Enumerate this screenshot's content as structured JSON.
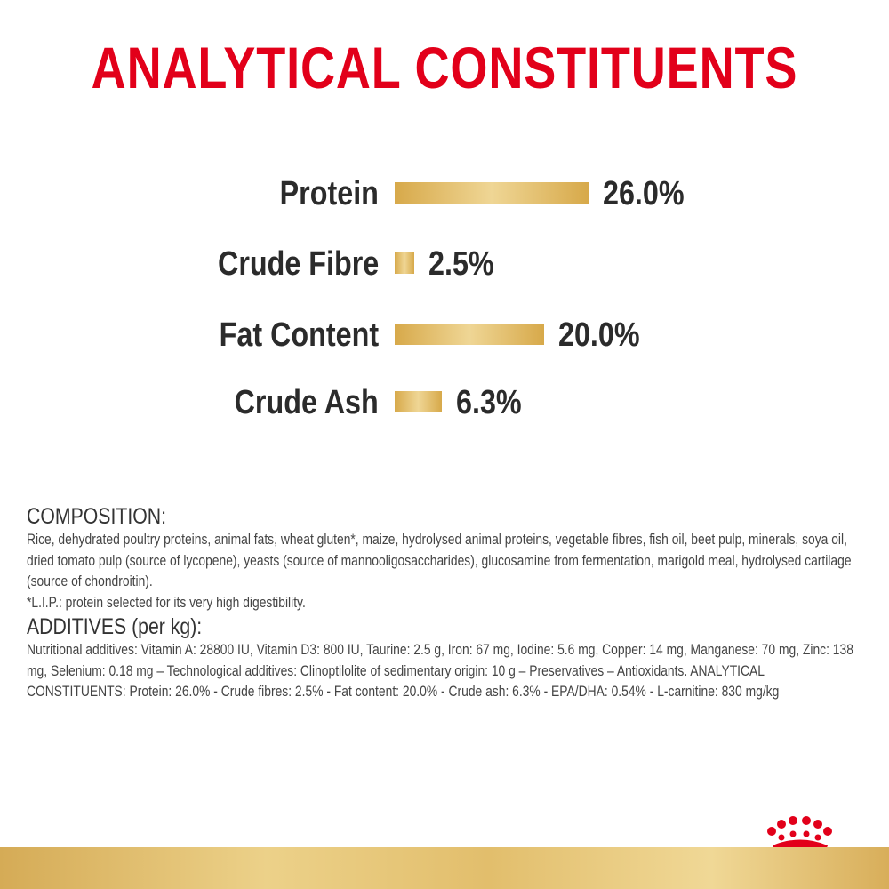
{
  "title": "ANALYTICAL CONSTITUENTS",
  "chart_data": {
    "type": "bar",
    "orientation": "horizontal",
    "categories": [
      "Protein",
      "Crude Fibre",
      "Fat Content",
      "Crude Ash"
    ],
    "values": [
      26.0,
      2.5,
      20.0,
      6.3
    ],
    "value_labels": [
      "26.0%",
      "2.5%",
      "20.0%",
      "6.3%"
    ],
    "unit": "%",
    "bar_color": "#d7a94a",
    "grid": false,
    "legend": "none"
  },
  "composition": {
    "heading": "COMPOSITION:",
    "text": "Rice, dehydrated poultry proteins, animal fats, wheat gluten*, maize, hydrolysed animal proteins, vegetable fibres, fish oil, beet pulp, minerals, soya oil, dried tomato pulp (source of lycopene), yeasts (source of mannooligosaccharides), glucosamine from fermentation, marigold meal, hydrolysed cartilage (source of chondroitin).",
    "footnote": "*L.I.P.: protein selected for its very high digestibility."
  },
  "additives": {
    "heading": "ADDITIVES (per kg):",
    "text": "Nutritional additives: Vitamin A: 28800 IU, Vitamin D3: 800 IU, Taurine: 2.5 g, Iron: 67 mg, Iodine: 5.6 mg, Copper: 14 mg, Manganese: 70 mg, Zinc: 138 mg, Selenium: 0.18 mg – Technological additives: Clinoptilolite of sedimentary origin: 10 g – Preservatives – Antioxidants. ANALYTICAL CONSTITUENTS: Protein: 26.0% - Crude fibres: 2.5% - Fat content: 20.0% - Crude ash: 6.3% - EPA/DHA: 0.54% - L-carnitine: 830 mg/kg"
  },
  "brand": {
    "logo_icon": "crown-icon",
    "logo_color": "#e2001a"
  }
}
